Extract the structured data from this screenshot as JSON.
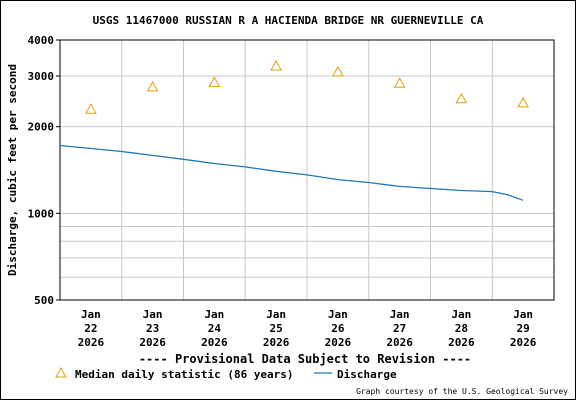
{
  "chart_data": {
    "type": "line",
    "title": "USGS 11467000 RUSSIAN R A HACIENDA BRIDGE NR GUERNEVILLE CA",
    "ylabel": "Discharge, cubic feet per second",
    "xlabel": "",
    "y_scale": "log",
    "ylim": [
      500,
      4000
    ],
    "y_ticks": [
      500,
      1000,
      2000,
      3000,
      4000
    ],
    "y_tick_labels": [
      "500",
      "1000",
      "2000",
      "3000",
      "4000"
    ],
    "y_minor_gridlines": [
      600,
      700,
      800,
      900,
      1000,
      2000,
      3000
    ],
    "x_range": [
      "2026-01-21T12:00",
      "2026-01-29T12:00"
    ],
    "x_ticks": [
      {
        "date": "2026-01-22",
        "label": [
          "Jan",
          "22",
          "2026"
        ]
      },
      {
        "date": "2026-01-23",
        "label": [
          "Jan",
          "23",
          "2026"
        ]
      },
      {
        "date": "2026-01-24",
        "label": [
          "Jan",
          "24",
          "2026"
        ]
      },
      {
        "date": "2026-01-25",
        "label": [
          "Jan",
          "25",
          "2026"
        ]
      },
      {
        "date": "2026-01-26",
        "label": [
          "Jan",
          "26",
          "2026"
        ]
      },
      {
        "date": "2026-01-27",
        "label": [
          "Jan",
          "27",
          "2026"
        ]
      },
      {
        "date": "2026-01-28",
        "label": [
          "Jan",
          "28",
          "2026"
        ]
      },
      {
        "date": "2026-01-29",
        "label": [
          "Jan",
          "29",
          "2026"
        ]
      }
    ],
    "grid": true,
    "series": [
      {
        "name": "Median daily statistic (86 years)",
        "kind": "marker",
        "marker": "triangle",
        "color": "#e69f00",
        "points": [
          {
            "x": "2026-01-22",
            "y": 2300
          },
          {
            "x": "2026-01-23",
            "y": 2750
          },
          {
            "x": "2026-01-24",
            "y": 2850
          },
          {
            "x": "2026-01-25",
            "y": 3250
          },
          {
            "x": "2026-01-26",
            "y": 3100
          },
          {
            "x": "2026-01-27",
            "y": 2830
          },
          {
            "x": "2026-01-28",
            "y": 2500
          },
          {
            "x": "2026-01-29",
            "y": 2420
          }
        ]
      },
      {
        "name": "Discharge",
        "kind": "line",
        "color": "#1f77b4",
        "points": [
          {
            "x": "2026-01-21T12:00",
            "y": 1720
          },
          {
            "x": "2026-01-22T00:00",
            "y": 1680
          },
          {
            "x": "2026-01-22T12:00",
            "y": 1640
          },
          {
            "x": "2026-01-23T00:00",
            "y": 1590
          },
          {
            "x": "2026-01-23T12:00",
            "y": 1540
          },
          {
            "x": "2026-01-24T00:00",
            "y": 1490
          },
          {
            "x": "2026-01-24T12:00",
            "y": 1450
          },
          {
            "x": "2026-01-25T00:00",
            "y": 1400
          },
          {
            "x": "2026-01-25T12:00",
            "y": 1360
          },
          {
            "x": "2026-01-26T00:00",
            "y": 1310
          },
          {
            "x": "2026-01-26T12:00",
            "y": 1280
          },
          {
            "x": "2026-01-27T00:00",
            "y": 1240
          },
          {
            "x": "2026-01-27T12:00",
            "y": 1220
          },
          {
            "x": "2026-01-28T00:00",
            "y": 1200
          },
          {
            "x": "2026-01-28T12:00",
            "y": 1190
          },
          {
            "x": "2026-01-28T18:00",
            "y": 1160
          },
          {
            "x": "2026-01-29T00:00",
            "y": 1110
          }
        ]
      }
    ],
    "notice": "---- Provisional Data Subject to Revision ----",
    "notice_color": "#ff0000",
    "legend_position": "bottom-left",
    "credit": "Graph courtesy of the U.S. Geological Survey"
  }
}
